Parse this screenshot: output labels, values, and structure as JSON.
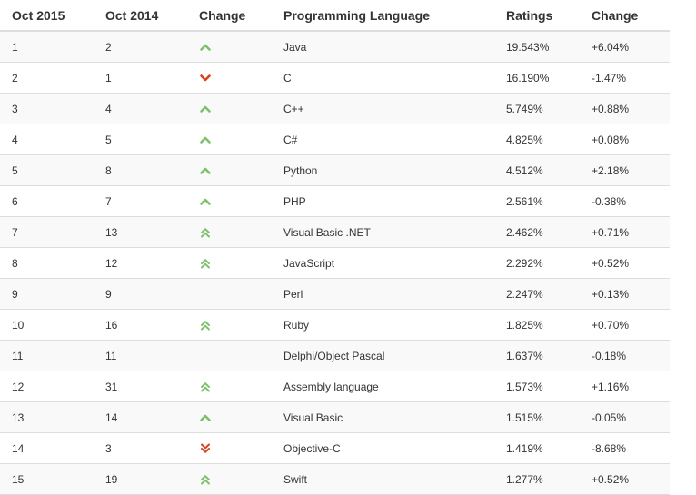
{
  "header": {
    "rank_now": "Oct 2015",
    "rank_prev": "Oct 2014",
    "change": "Change",
    "language": "Programming Language",
    "ratings": "Ratings",
    "ratings_change": "Change"
  },
  "colors": {
    "up": "#7dc06b",
    "down": "#d9411e"
  },
  "rows": [
    {
      "rank": "1",
      "prev": "2",
      "trend": "up",
      "lang": "Java",
      "rating": "19.543%",
      "delta": "+6.04%"
    },
    {
      "rank": "2",
      "prev": "1",
      "trend": "down",
      "lang": "C",
      "rating": "16.190%",
      "delta": "-1.47%"
    },
    {
      "rank": "3",
      "prev": "4",
      "trend": "up",
      "lang": "C++",
      "rating": "5.749%",
      "delta": "+0.88%"
    },
    {
      "rank": "4",
      "prev": "5",
      "trend": "up",
      "lang": "C#",
      "rating": "4.825%",
      "delta": "+0.08%"
    },
    {
      "rank": "5",
      "prev": "8",
      "trend": "up",
      "lang": "Python",
      "rating": "4.512%",
      "delta": "+2.18%"
    },
    {
      "rank": "6",
      "prev": "7",
      "trend": "up",
      "lang": "PHP",
      "rating": "2.561%",
      "delta": "-0.38%"
    },
    {
      "rank": "7",
      "prev": "13",
      "trend": "double-up",
      "lang": "Visual Basic .NET",
      "rating": "2.462%",
      "delta": "+0.71%"
    },
    {
      "rank": "8",
      "prev": "12",
      "trend": "double-up",
      "lang": "JavaScript",
      "rating": "2.292%",
      "delta": "+0.52%"
    },
    {
      "rank": "9",
      "prev": "9",
      "trend": "none",
      "lang": "Perl",
      "rating": "2.247%",
      "delta": "+0.13%"
    },
    {
      "rank": "10",
      "prev": "16",
      "trend": "double-up",
      "lang": "Ruby",
      "rating": "1.825%",
      "delta": "+0.70%"
    },
    {
      "rank": "11",
      "prev": "11",
      "trend": "none",
      "lang": "Delphi/Object Pascal",
      "rating": "1.637%",
      "delta": "-0.18%"
    },
    {
      "rank": "12",
      "prev": "31",
      "trend": "double-up",
      "lang": "Assembly language",
      "rating": "1.573%",
      "delta": "+1.16%"
    },
    {
      "rank": "13",
      "prev": "14",
      "trend": "up",
      "lang": "Visual Basic",
      "rating": "1.515%",
      "delta": "-0.05%"
    },
    {
      "rank": "14",
      "prev": "3",
      "trend": "double-down",
      "lang": "Objective-C",
      "rating": "1.419%",
      "delta": "-8.68%"
    },
    {
      "rank": "15",
      "prev": "19",
      "trend": "double-up",
      "lang": "Swift",
      "rating": "1.277%",
      "delta": "+0.52%"
    }
  ]
}
